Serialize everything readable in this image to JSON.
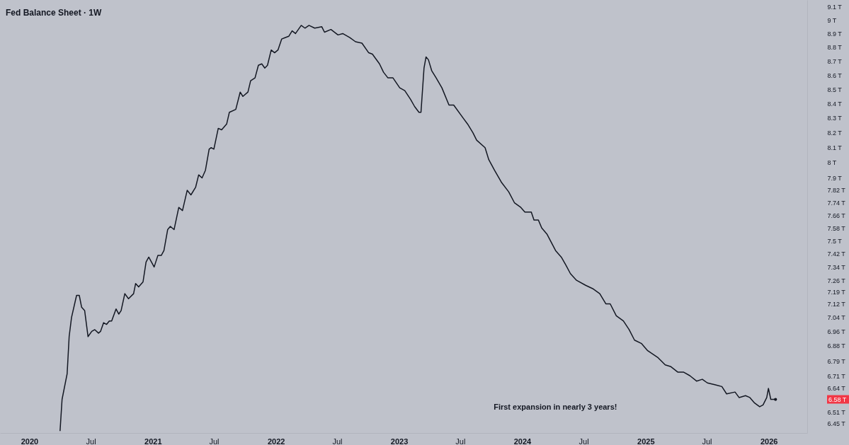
{
  "chart_data": {
    "type": "line",
    "title": "Fed Balance Sheet · 1W",
    "log": "y",
    "x": [
      "2020-04-01",
      "2020-04-07",
      "2020-04-22",
      "2020-04-28",
      "2020-05-05",
      "2020-05-20",
      "2020-05-28",
      "2020-06-04",
      "2020-06-13",
      "2020-06-23",
      "2020-07-04",
      "2020-07-13",
      "2020-07-24",
      "2020-07-30",
      "2020-08-08",
      "2020-08-17",
      "2020-08-25",
      "2020-09-01",
      "2020-09-14",
      "2020-09-22",
      "2020-09-29",
      "2020-10-10",
      "2020-10-21",
      "2020-11-05",
      "2020-11-11",
      "2020-11-20",
      "2020-12-03",
      "2020-12-12",
      "2020-12-20",
      "2021-01-05",
      "2021-01-16",
      "2021-01-26",
      "2021-02-03",
      "2021-02-14",
      "2021-02-22",
      "2021-03-05",
      "2021-03-19",
      "2021-03-30",
      "2021-04-13",
      "2021-04-24",
      "2021-05-08",
      "2021-05-17",
      "2021-05-27",
      "2021-06-06",
      "2021-06-17",
      "2021-06-23",
      "2021-07-01",
      "2021-07-14",
      "2021-07-24",
      "2021-08-08",
      "2021-08-16",
      "2021-09-04",
      "2021-09-17",
      "2021-09-25",
      "2021-10-10",
      "2021-10-18",
      "2021-10-31",
      "2021-11-10",
      "2021-11-20",
      "2021-11-29",
      "2021-12-07",
      "2021-12-18",
      "2021-12-28",
      "2022-01-07",
      "2022-01-18",
      "2022-01-28",
      "2022-02-08",
      "2022-02-18",
      "2022-02-28",
      "2022-03-17",
      "2022-03-28",
      "2022-04-09",
      "2022-04-26",
      "2022-05-17",
      "2022-05-25",
      "2022-06-13",
      "2022-07-04",
      "2022-07-18",
      "2022-08-08",
      "2022-08-25",
      "2022-09-13",
      "2022-10-03",
      "2022-10-14",
      "2022-11-04",
      "2022-11-16",
      "2022-11-29",
      "2022-12-14",
      "2023-01-03",
      "2023-01-18",
      "2023-02-04",
      "2023-02-16",
      "2023-03-01",
      "2023-03-07",
      "2023-03-16",
      "2023-03-22",
      "2023-03-29",
      "2023-04-08",
      "2023-04-21",
      "2023-05-08",
      "2023-05-29",
      "2023-06-12",
      "2023-07-10",
      "2023-07-23",
      "2023-08-08",
      "2023-08-19",
      "2023-09-13",
      "2023-09-24",
      "2023-10-11",
      "2023-11-01",
      "2023-11-22",
      "2023-12-09",
      "2023-12-28",
      "2024-01-09",
      "2024-01-28",
      "2024-02-05",
      "2024-02-18",
      "2024-02-28",
      "2024-03-15",
      "2024-04-09",
      "2024-04-26",
      "2024-05-10",
      "2024-05-23",
      "2024-06-10",
      "2024-07-07",
      "2024-07-28",
      "2024-08-18",
      "2024-09-05",
      "2024-09-18",
      "2024-10-06",
      "2024-10-27",
      "2024-11-13",
      "2024-11-29",
      "2024-12-20",
      "2025-01-07",
      "2025-02-07",
      "2025-02-28",
      "2025-03-17",
      "2025-04-06",
      "2025-04-23",
      "2025-05-12",
      "2025-06-01",
      "2025-06-18",
      "2025-07-03",
      "2025-07-25",
      "2025-08-15",
      "2025-08-29",
      "2025-09-23",
      "2025-10-05",
      "2025-10-24",
      "2025-11-06",
      "2025-11-20",
      "2025-12-05",
      "2025-12-15",
      "2025-12-26",
      "2025-12-31",
      "2026-01-07",
      "2026-01-21"
    ],
    "series": [
      {
        "color": "#131722",
        "values": [
          6.41,
          6.58,
          6.72,
          6.93,
          7.04,
          7.17,
          7.17,
          7.1,
          7.08,
          6.93,
          6.96,
          6.97,
          6.95,
          6.96,
          7.01,
          7.0,
          7.02,
          7.02,
          7.09,
          7.06,
          7.08,
          7.18,
          7.15,
          7.18,
          7.24,
          7.22,
          7.25,
          7.37,
          7.4,
          7.34,
          7.41,
          7.41,
          7.44,
          7.57,
          7.59,
          7.57,
          7.71,
          7.69,
          7.82,
          7.79,
          7.84,
          7.92,
          7.9,
          7.95,
          8.09,
          8.1,
          8.09,
          8.23,
          8.22,
          8.26,
          8.34,
          8.36,
          8.48,
          8.45,
          8.48,
          8.56,
          8.58,
          8.67,
          8.68,
          8.65,
          8.67,
          8.78,
          8.76,
          8.78,
          8.86,
          8.87,
          8.88,
          8.92,
          8.9,
          8.96,
          8.94,
          8.96,
          8.94,
          8.95,
          8.91,
          8.93,
          8.89,
          8.9,
          8.87,
          8.84,
          8.83,
          8.76,
          8.75,
          8.68,
          8.62,
          8.58,
          8.58,
          8.51,
          8.49,
          8.43,
          8.38,
          8.34,
          8.34,
          8.65,
          8.73,
          8.71,
          8.63,
          8.58,
          8.51,
          8.39,
          8.39,
          8.3,
          8.26,
          8.2,
          8.15,
          8.1,
          8.02,
          7.95,
          7.87,
          7.81,
          7.74,
          7.71,
          7.68,
          7.68,
          7.63,
          7.63,
          7.58,
          7.54,
          7.44,
          7.4,
          7.35,
          7.3,
          7.26,
          7.23,
          7.21,
          7.18,
          7.12,
          7.12,
          7.05,
          7.02,
          6.97,
          6.91,
          6.89,
          6.85,
          6.81,
          6.77,
          6.76,
          6.73,
          6.73,
          6.71,
          6.68,
          6.69,
          6.67,
          6.66,
          6.65,
          6.61,
          6.62,
          6.59,
          6.6,
          6.59,
          6.56,
          6.54,
          6.55,
          6.59,
          6.64,
          6.58,
          6.58
        ]
      }
    ],
    "xlim": [
      "2019-10-06",
      "2026-04-25"
    ],
    "xticks": [
      {
        "value": "2020-01-01",
        "label": "2020"
      },
      {
        "value": "2020-07-01",
        "label": "Jul"
      },
      {
        "value": "2021-01-01",
        "label": "2021"
      },
      {
        "value": "2021-07-01",
        "label": "Jul"
      },
      {
        "value": "2022-01-01",
        "label": "2022"
      },
      {
        "value": "2022-07-01",
        "label": "Jul"
      },
      {
        "value": "2023-01-01",
        "label": "2023"
      },
      {
        "value": "2023-07-01",
        "label": "Jul"
      },
      {
        "value": "2024-01-01",
        "label": "2024"
      },
      {
        "value": "2024-07-01",
        "label": "Jul"
      },
      {
        "value": "2025-01-01",
        "label": "2025"
      },
      {
        "value": "2025-07-01",
        "label": "Jul"
      },
      {
        "value": "2026-01-01",
        "label": "2026"
      }
    ],
    "ylim": [
      6.4,
      9.15
    ],
    "yticks": [
      {
        "value": 9.1,
        "label": "9.1 T"
      },
      {
        "value": 9,
        "label": "9 T"
      },
      {
        "value": 8.9,
        "label": "8.9 T"
      },
      {
        "value": 8.8,
        "label": "8.8 T"
      },
      {
        "value": 8.7,
        "label": "8.7 T"
      },
      {
        "value": 8.6,
        "label": "8.6 T"
      },
      {
        "value": 8.5,
        "label": "8.5 T"
      },
      {
        "value": 8.4,
        "label": "8.4 T"
      },
      {
        "value": 8.3,
        "label": "8.3 T"
      },
      {
        "value": 8.2,
        "label": "8.2 T"
      },
      {
        "value": 8.1,
        "label": "8.1 T"
      },
      {
        "value": 8,
        "label": "8 T"
      },
      {
        "value": 7.9,
        "label": "7.9 T"
      },
      {
        "value": 7.82,
        "label": "7.82 T"
      },
      {
        "value": 7.74,
        "label": "7.74 T"
      },
      {
        "value": 7.66,
        "label": "7.66 T"
      },
      {
        "value": 7.58,
        "label": "7.58 T"
      },
      {
        "value": 7.5,
        "label": "7.5 T"
      },
      {
        "value": 7.42,
        "label": "7.42 T"
      },
      {
        "value": 7.34,
        "label": "7.34 T"
      },
      {
        "value": 7.26,
        "label": "7.26 T"
      },
      {
        "value": 7.19,
        "label": "7.19 T"
      },
      {
        "value": 7.12,
        "label": "7.12 T"
      },
      {
        "value": 7.04,
        "label": "7.04 T"
      },
      {
        "value": 6.96,
        "label": "6.96 T"
      },
      {
        "value": 6.88,
        "label": "6.88 T"
      },
      {
        "value": 6.79,
        "label": "6.79 T"
      },
      {
        "value": 6.71,
        "label": "6.71 T"
      },
      {
        "value": 6.64,
        "label": "6.64 T"
      },
      {
        "value": 6.51,
        "label": "6.51 T"
      },
      {
        "value": 6.45,
        "label": "6.45 T"
      }
    ],
    "annotations": [
      "First expansion in nearly 3 years!",
      "6.58 T"
    ],
    "grid": false
  }
}
